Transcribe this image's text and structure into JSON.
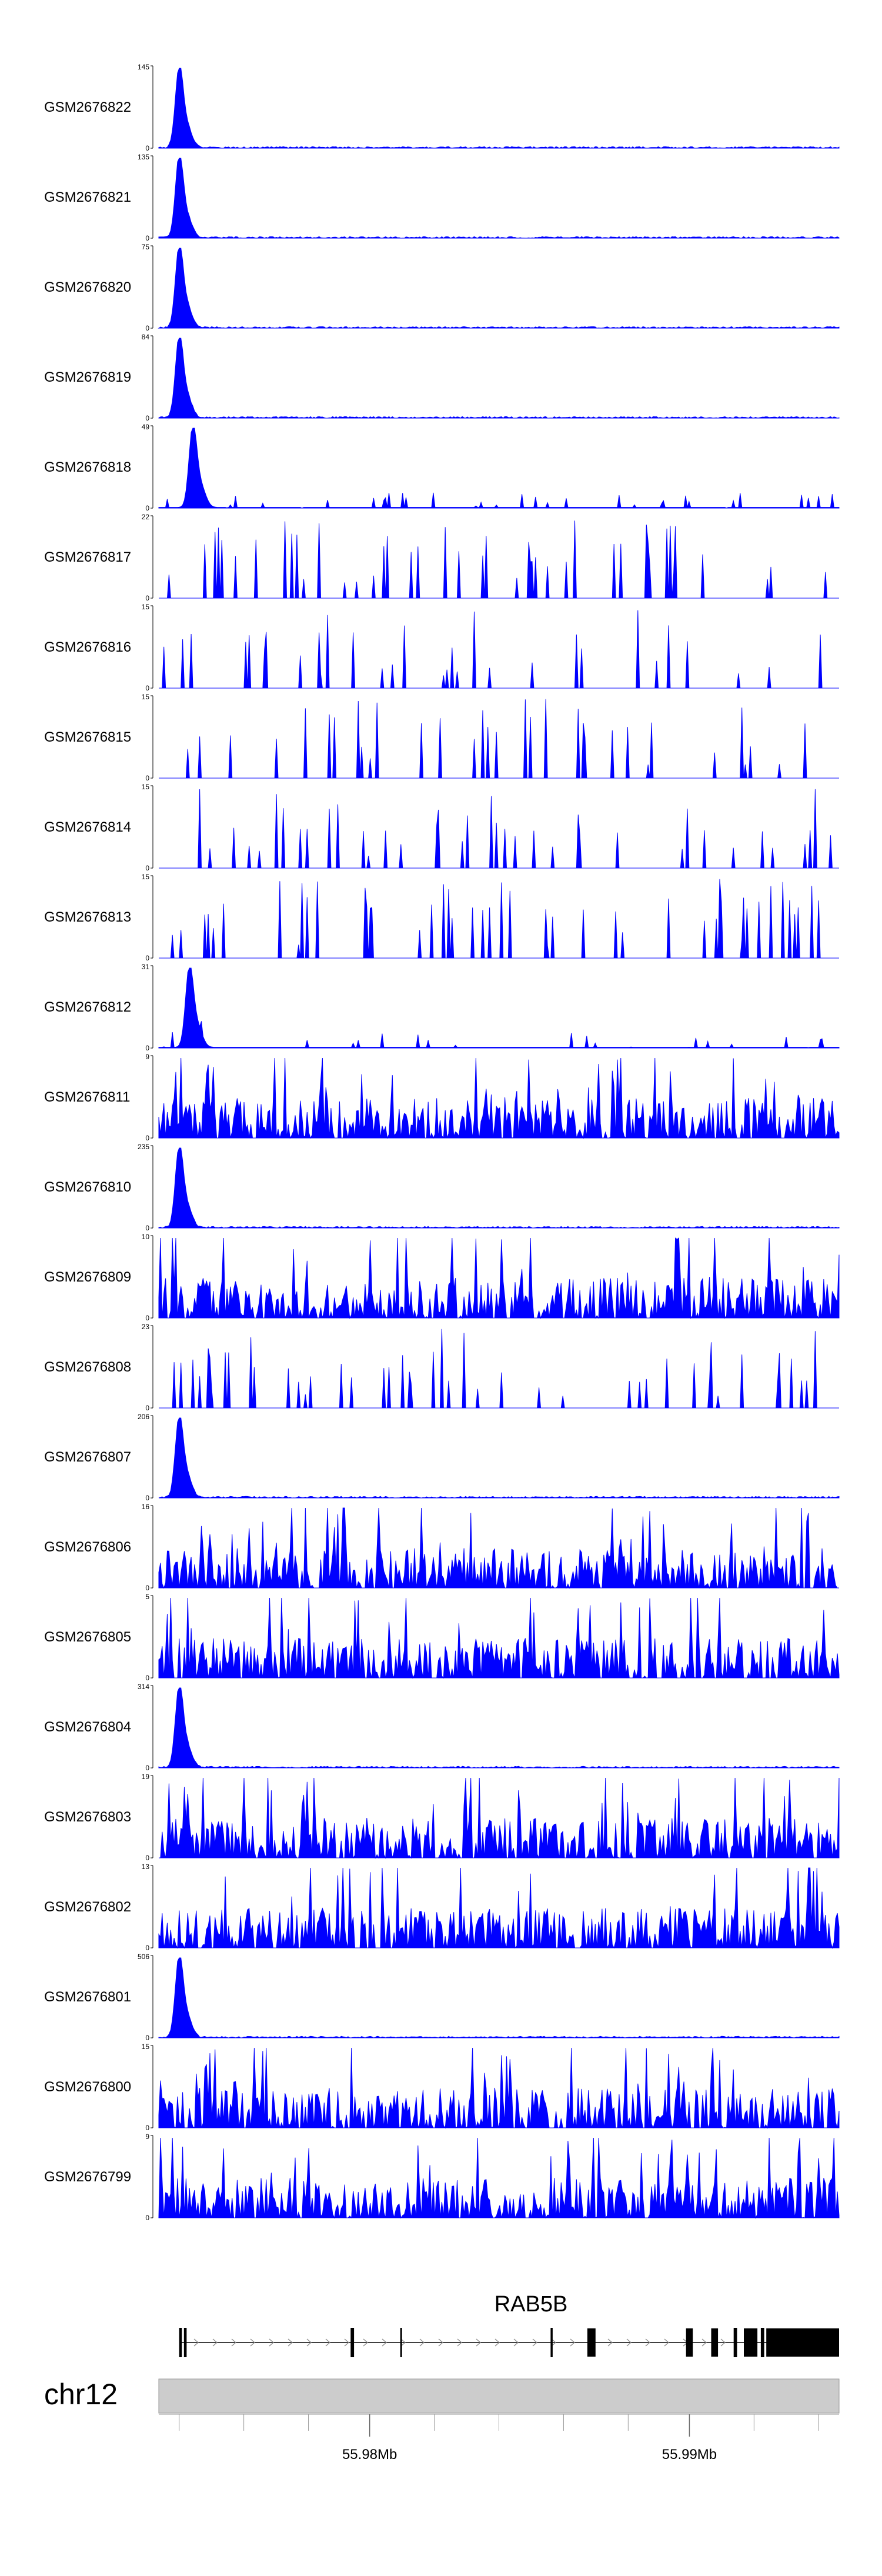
{
  "colors": {
    "coverage": "#0000ff",
    "ideogram": "#cccccc",
    "gene": "#000000"
  },
  "chart_data": {
    "type": "area",
    "title": "",
    "xlabel": "",
    "ylabel": "",
    "x_unit": "position (relative, 0-1 of region)",
    "series": [
      {
        "name": "GSM2676822",
        "ymax_label": "145",
        "ymin_label": "0",
        "pattern": "spike",
        "seed": 1
      },
      {
        "name": "GSM2676821",
        "ymax_label": "135",
        "ymin_label": "0",
        "pattern": "spike",
        "seed": 2
      },
      {
        "name": "GSM2676820",
        "ymax_label": "75",
        "ymin_label": "0",
        "pattern": "spike",
        "seed": 3
      },
      {
        "name": "GSM2676819",
        "ymax_label": "84",
        "ymin_label": "0",
        "pattern": "spike",
        "seed": 4
      },
      {
        "name": "GSM2676818",
        "ymax_label": "49",
        "ymin_label": "0",
        "pattern": "spike-late",
        "seed": 5
      },
      {
        "name": "GSM2676817",
        "ymax_label": "22",
        "ymin_label": "0",
        "pattern": "sparse",
        "seed": 6
      },
      {
        "name": "GSM2676816",
        "ymax_label": "15",
        "ymin_label": "0",
        "pattern": "sparse",
        "seed": 7
      },
      {
        "name": "GSM2676815",
        "ymax_label": "15",
        "ymin_label": "0",
        "pattern": "sparse",
        "seed": 8
      },
      {
        "name": "GSM2676814",
        "ymax_label": "15",
        "ymin_label": "0",
        "pattern": "sparse",
        "seed": 9
      },
      {
        "name": "GSM2676813",
        "ymax_label": "15",
        "ymin_label": "0",
        "pattern": "sparse",
        "seed": 10
      },
      {
        "name": "GSM2676812",
        "ymax_label": "31",
        "ymin_label": "0",
        "pattern": "spike-mid",
        "seed": 11
      },
      {
        "name": "GSM2676811",
        "ymax_label": "9",
        "ymin_label": "0",
        "pattern": "dense",
        "seed": 12
      },
      {
        "name": "GSM2676810",
        "ymax_label": "235",
        "ymin_label": "0",
        "pattern": "spike",
        "seed": 13
      },
      {
        "name": "GSM2676809",
        "ymax_label": "10",
        "ymin_label": "0",
        "pattern": "dense",
        "seed": 14
      },
      {
        "name": "GSM2676808",
        "ymax_label": "23",
        "ymin_label": "0",
        "pattern": "sparse",
        "seed": 15
      },
      {
        "name": "GSM2676807",
        "ymax_label": "206",
        "ymin_label": "0",
        "pattern": "spike",
        "seed": 16
      },
      {
        "name": "GSM2676806",
        "ymax_label": "16",
        "ymin_label": "0",
        "pattern": "dense",
        "seed": 17
      },
      {
        "name": "GSM2676805",
        "ymax_label": "5",
        "ymin_label": "0",
        "pattern": "dense",
        "seed": 18
      },
      {
        "name": "GSM2676804",
        "ymax_label": "314",
        "ymin_label": "0",
        "pattern": "spike",
        "seed": 19
      },
      {
        "name": "GSM2676803",
        "ymax_label": "19",
        "ymin_label": "0",
        "pattern": "dense",
        "seed": 20
      },
      {
        "name": "GSM2676802",
        "ymax_label": "13",
        "ymin_label": "0",
        "pattern": "dense",
        "seed": 21
      },
      {
        "name": "GSM2676801",
        "ymax_label": "506",
        "ymin_label": "0",
        "pattern": "spike",
        "seed": 22
      },
      {
        "name": "GSM2676800",
        "ymax_label": "15",
        "ymin_label": "0",
        "pattern": "dense",
        "seed": 23
      },
      {
        "name": "GSM2676799",
        "ymax_label": "9",
        "ymin_label": "0",
        "pattern": "dense",
        "seed": 24
      }
    ],
    "gene_track": {
      "gene_name": "RAB5B",
      "strand": "+",
      "exons": [
        {
          "start": 0.03,
          "end": 0.034
        },
        {
          "start": 0.037,
          "end": 0.041
        },
        {
          "start": 0.282,
          "end": 0.287
        },
        {
          "start": 0.355,
          "end": 0.357
        },
        {
          "start": 0.576,
          "end": 0.579
        },
        {
          "start": 0.63,
          "end": 0.642
        },
        {
          "start": 0.775,
          "end": 0.785
        },
        {
          "start": 0.812,
          "end": 0.822
        },
        {
          "start": 0.845,
          "end": 0.85
        },
        {
          "start": 0.86,
          "end": 0.88
        },
        {
          "start": 0.885,
          "end": 0.89
        },
        {
          "start": 0.893,
          "end": 1.0
        }
      ]
    },
    "axis": {
      "chromosome": "chr12",
      "tick_labels": [
        {
          "label": "55.98Mb",
          "position": 0.31
        },
        {
          "label": "55.99Mb",
          "position": 0.78
        }
      ],
      "minor_ticks": [
        0.03,
        0.125,
        0.22,
        0.31,
        0.405,
        0.5,
        0.595,
        0.69,
        0.78,
        0.875,
        0.97
      ]
    }
  }
}
